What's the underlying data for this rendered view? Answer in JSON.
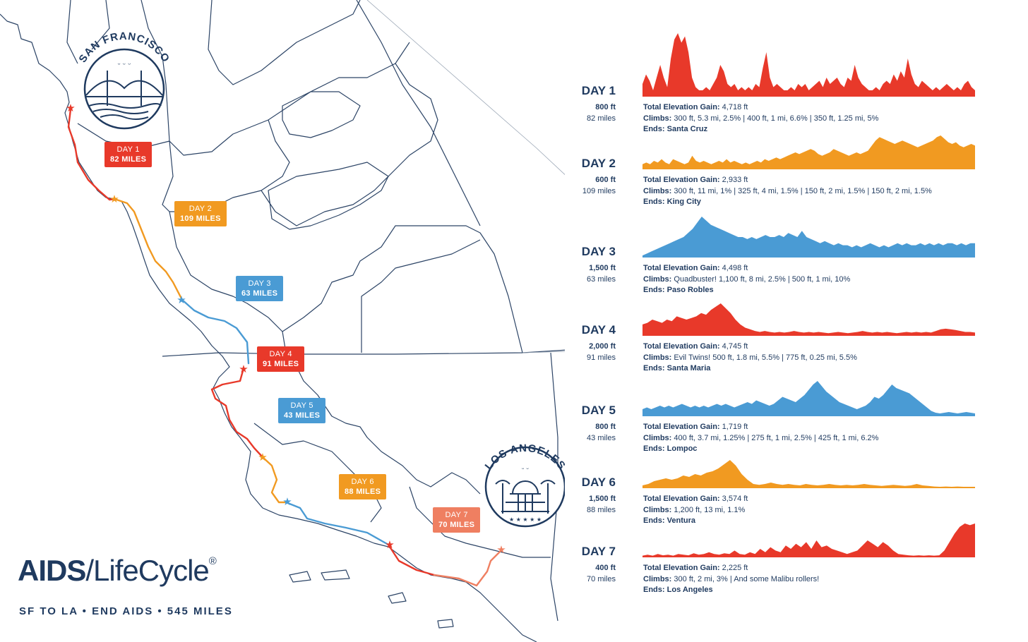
{
  "brand": {
    "name_bold": "AIDS",
    "name_light": "/LifeCycle",
    "registered": "®",
    "tagline": "SF TO LA • END AIDS • 545 MILES"
  },
  "cities": {
    "start": "SAN FRANCISCO",
    "end": "LOS ANGELES"
  },
  "colors": {
    "red": "#e8392a",
    "orange": "#f19a21",
    "blue": "#4a9bd4",
    "salmon": "#ef7f61",
    "navy": "#1f3a5f"
  },
  "map_badges": [
    {
      "line1": "DAY 1",
      "line2": "82 MILES",
      "color": "#e8392a"
    },
    {
      "line1": "DAY 2",
      "line2": "109 MILES",
      "color": "#f19a21"
    },
    {
      "line1": "DAY 3",
      "line2": "63 MILES",
      "color": "#4a9bd4"
    },
    {
      "line1": "DAY 4",
      "line2": "91 MILES",
      "color": "#e8392a"
    },
    {
      "line1": "DAY 5",
      "line2": "43 MILES",
      "color": "#4a9bd4"
    },
    {
      "line1": "DAY 6",
      "line2": "88 MILES",
      "color": "#f19a21"
    },
    {
      "line1": "DAY 7",
      "line2": "70 MILES",
      "color": "#ef7f61"
    }
  ],
  "days": [
    {
      "title": "DAY 1",
      "max_ft": "800 ft",
      "miles": "82 miles",
      "color": "#e8392a",
      "gain_label": "Total Elevation Gain:",
      "gain": "4,718 ft",
      "climbs_label": "Climbs:",
      "climbs": "300 ft, 5.3 mi, 2.5%   |   400 ft, 1 mi, 6.6%   |   350 ft, 1.25 mi, 5%",
      "ends_label": "Ends:",
      "ends": "Santa Cruz",
      "profile": [
        0.2,
        0.35,
        0.25,
        0.1,
        0.3,
        0.5,
        0.3,
        0.15,
        0.6,
        0.9,
        1.0,
        0.85,
        0.95,
        0.7,
        0.3,
        0.15,
        0.1,
        0.1,
        0.15,
        0.1,
        0.2,
        0.3,
        0.5,
        0.4,
        0.2,
        0.15,
        0.2,
        0.1,
        0.15,
        0.1,
        0.15,
        0.1,
        0.2,
        0.15,
        0.45,
        0.7,
        0.3,
        0.15,
        0.2,
        0.15,
        0.1,
        0.1,
        0.15,
        0.1,
        0.2,
        0.15,
        0.2,
        0.1,
        0.15,
        0.2,
        0.25,
        0.15,
        0.3,
        0.2,
        0.25,
        0.3,
        0.2,
        0.15,
        0.3,
        0.25,
        0.5,
        0.3,
        0.2,
        0.15,
        0.1,
        0.1,
        0.15,
        0.1,
        0.2,
        0.25,
        0.2,
        0.35,
        0.25,
        0.4,
        0.3,
        0.6,
        0.35,
        0.2,
        0.15,
        0.25,
        0.2,
        0.15,
        0.1,
        0.15,
        0.1,
        0.15,
        0.2,
        0.15,
        0.1,
        0.15,
        0.1,
        0.2,
        0.25,
        0.15,
        0.1
      ]
    },
    {
      "title": "DAY 2",
      "max_ft": "600 ft",
      "miles": "109 miles",
      "color": "#f19a21",
      "gain_label": "Total Elevation Gain:",
      "gain": "2,933 ft",
      "climbs_label": "Climbs:",
      "climbs": "300 ft, 11 mi, 1%   |   325 ft, 4 mi, 1.5%   |   150 ft, 2 mi, 1.5%   |   150 ft, 2 mi, 1.5%",
      "ends_label": "Ends:",
      "ends": "King City",
      "profile": [
        0.15,
        0.2,
        0.15,
        0.25,
        0.2,
        0.3,
        0.2,
        0.15,
        0.3,
        0.25,
        0.2,
        0.15,
        0.2,
        0.4,
        0.25,
        0.2,
        0.25,
        0.2,
        0.15,
        0.2,
        0.25,
        0.2,
        0.3,
        0.2,
        0.25,
        0.2,
        0.15,
        0.2,
        0.15,
        0.2,
        0.25,
        0.2,
        0.3,
        0.25,
        0.3,
        0.35,
        0.3,
        0.35,
        0.4,
        0.45,
        0.5,
        0.45,
        0.5,
        0.55,
        0.6,
        0.55,
        0.45,
        0.4,
        0.45,
        0.5,
        0.6,
        0.55,
        0.5,
        0.45,
        0.4,
        0.45,
        0.5,
        0.45,
        0.5,
        0.55,
        0.7,
        0.85,
        0.95,
        0.9,
        0.85,
        0.8,
        0.75,
        0.8,
        0.85,
        0.8,
        0.75,
        0.7,
        0.65,
        0.7,
        0.75,
        0.8,
        0.85,
        0.95,
        1.0,
        0.9,
        0.8,
        0.75,
        0.8,
        0.7,
        0.65,
        0.7,
        0.75,
        0.7
      ]
    },
    {
      "title": "DAY 3",
      "max_ft": "1,500 ft",
      "miles": "63 miles",
      "color": "#4a9bd4",
      "gain_label": "Total Elevation Gain:",
      "gain": "4,498 ft",
      "climbs_label": "Climbs:",
      "climbs": "Quadbuster!   1,100 ft, 8 mi, 2.5%   |   500 ft, 1 mi, 10%",
      "ends_label": "Ends:",
      "ends": "Paso Robles",
      "profile": [
        0.05,
        0.1,
        0.15,
        0.2,
        0.25,
        0.3,
        0.35,
        0.4,
        0.45,
        0.5,
        0.6,
        0.7,
        0.85,
        1.0,
        0.9,
        0.8,
        0.75,
        0.7,
        0.65,
        0.6,
        0.55,
        0.5,
        0.5,
        0.45,
        0.5,
        0.45,
        0.5,
        0.55,
        0.5,
        0.5,
        0.55,
        0.5,
        0.6,
        0.55,
        0.5,
        0.65,
        0.5,
        0.45,
        0.4,
        0.35,
        0.4,
        0.35,
        0.3,
        0.35,
        0.3,
        0.3,
        0.25,
        0.3,
        0.25,
        0.3,
        0.35,
        0.3,
        0.25,
        0.3,
        0.25,
        0.3,
        0.35,
        0.3,
        0.35,
        0.3,
        0.3,
        0.35,
        0.3,
        0.35,
        0.3,
        0.35,
        0.3,
        0.35,
        0.35,
        0.3,
        0.35,
        0.3,
        0.35,
        0.35
      ]
    },
    {
      "title": "DAY 4",
      "max_ft": "2,000 ft",
      "miles": "91 miles",
      "color": "#e8392a",
      "gain_label": "Total Elevation Gain:",
      "gain": "4,745 ft",
      "climbs_label": "Climbs:",
      "climbs": "Evil Twins!   500 ft, 1.8 mi, 5.5%   |   775 ft, 0.25 mi, 5.5%",
      "ends_label": "Ends:",
      "ends": "Santa Maria",
      "profile": [
        0.35,
        0.4,
        0.5,
        0.45,
        0.4,
        0.5,
        0.45,
        0.6,
        0.55,
        0.5,
        0.55,
        0.6,
        0.7,
        0.65,
        0.8,
        0.9,
        1.0,
        0.85,
        0.7,
        0.5,
        0.35,
        0.25,
        0.2,
        0.15,
        0.12,
        0.15,
        0.12,
        0.1,
        0.12,
        0.1,
        0.12,
        0.15,
        0.12,
        0.1,
        0.12,
        0.1,
        0.12,
        0.1,
        0.08,
        0.1,
        0.12,
        0.1,
        0.08,
        0.1,
        0.12,
        0.15,
        0.12,
        0.1,
        0.12,
        0.1,
        0.12,
        0.1,
        0.08,
        0.1,
        0.12,
        0.1,
        0.12,
        0.1,
        0.12,
        0.1,
        0.15,
        0.2,
        0.22,
        0.2,
        0.18,
        0.15,
        0.12,
        0.12,
        0.1
      ]
    },
    {
      "title": "DAY 5",
      "max_ft": "800 ft",
      "miles": "43 miles",
      "color": "#4a9bd4",
      "gain_label": "Total Elevation Gain:",
      "gain": "1,719 ft",
      "climbs_label": "Climbs:",
      "climbs": "400 ft, 3.7 mi, 1.25%   |   275 ft, 1 mi, 2.5%   |   425 ft, 1 mi, 6.2%",
      "ends_label": "Ends:",
      "ends": "Lompoc",
      "profile": [
        0.2,
        0.25,
        0.2,
        0.25,
        0.3,
        0.25,
        0.3,
        0.25,
        0.3,
        0.35,
        0.3,
        0.25,
        0.3,
        0.25,
        0.3,
        0.25,
        0.3,
        0.35,
        0.3,
        0.35,
        0.3,
        0.25,
        0.3,
        0.35,
        0.4,
        0.35,
        0.45,
        0.4,
        0.35,
        0.3,
        0.35,
        0.45,
        0.55,
        0.5,
        0.45,
        0.4,
        0.5,
        0.6,
        0.75,
        0.9,
        1.0,
        0.85,
        0.7,
        0.6,
        0.5,
        0.4,
        0.35,
        0.3,
        0.25,
        0.2,
        0.25,
        0.3,
        0.4,
        0.55,
        0.5,
        0.6,
        0.75,
        0.9,
        0.8,
        0.75,
        0.7,
        0.65,
        0.55,
        0.45,
        0.35,
        0.25,
        0.15,
        0.1,
        0.08,
        0.1,
        0.12,
        0.1,
        0.08,
        0.1,
        0.12,
        0.1,
        0.08
      ]
    },
    {
      "title": "DAY 6",
      "max_ft": "1,500 ft",
      "miles": "88 miles",
      "color": "#f19a21",
      "gain_label": "Total Elevation Gain:",
      "gain": "3,574 ft",
      "climbs_label": "Climbs:",
      "climbs": "1,200 ft, 13 mi, 1.1%",
      "ends_label": "Ends:",
      "ends": "Ventura",
      "profile": [
        0.1,
        0.15,
        0.25,
        0.3,
        0.35,
        0.3,
        0.35,
        0.45,
        0.4,
        0.5,
        0.45,
        0.55,
        0.6,
        0.7,
        0.85,
        1.0,
        0.8,
        0.5,
        0.3,
        0.15,
        0.12,
        0.15,
        0.2,
        0.15,
        0.12,
        0.15,
        0.12,
        0.1,
        0.15,
        0.12,
        0.1,
        0.12,
        0.15,
        0.12,
        0.1,
        0.12,
        0.1,
        0.12,
        0.15,
        0.12,
        0.1,
        0.08,
        0.1,
        0.12,
        0.1,
        0.08,
        0.1,
        0.15,
        0.1,
        0.08,
        0.06,
        0.05,
        0.06,
        0.05,
        0.06,
        0.05,
        0.05,
        0.05
      ]
    },
    {
      "title": "DAY 7",
      "max_ft": "400 ft",
      "miles": "70 miles",
      "color": "#e8392a",
      "gain_label": "Total Elevation Gain:",
      "gain": "2,225 ft",
      "climbs_label": "Climbs:",
      "climbs": "300 ft, 2 mi, 3%   |   And some Malibu rollers!",
      "ends_label": "Ends:",
      "ends": "Los Angeles",
      "profile": [
        0.05,
        0.08,
        0.05,
        0.1,
        0.06,
        0.08,
        0.05,
        0.1,
        0.08,
        0.06,
        0.12,
        0.08,
        0.1,
        0.15,
        0.1,
        0.08,
        0.12,
        0.1,
        0.2,
        0.1,
        0.08,
        0.15,
        0.1,
        0.25,
        0.15,
        0.3,
        0.2,
        0.15,
        0.35,
        0.25,
        0.4,
        0.3,
        0.45,
        0.25,
        0.5,
        0.3,
        0.35,
        0.25,
        0.2,
        0.15,
        0.1,
        0.15,
        0.2,
        0.35,
        0.5,
        0.4,
        0.3,
        0.45,
        0.35,
        0.2,
        0.1,
        0.08,
        0.06,
        0.05,
        0.06,
        0.05,
        0.06,
        0.05,
        0.06,
        0.2,
        0.45,
        0.7,
        0.9,
        1.0,
        0.95,
        1.0
      ]
    }
  ]
}
